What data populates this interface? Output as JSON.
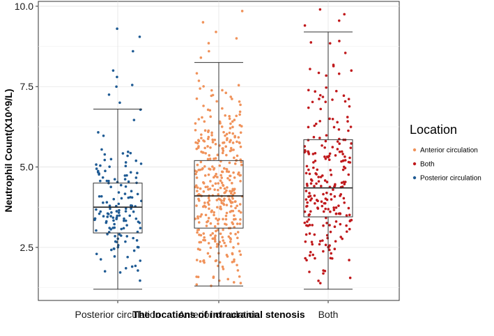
{
  "chart_data": {
    "type": "boxplot-jitter",
    "xlabel": "The locations of intracranial stenosis",
    "ylabel": "Neutrophil Count(X10^9/L)",
    "ylim": [
      0.85,
      10.15
    ],
    "yticks": [
      2.5,
      5.0,
      7.5,
      10.0
    ],
    "ytick_labels": [
      "2.5",
      "5.0",
      "7.5",
      "10.0"
    ],
    "grid": true,
    "categories": [
      "Posterior circulation",
      "Anterior circulation",
      "Both"
    ],
    "boxes": [
      {
        "name": "Posterior circulation",
        "min": 1.2,
        "q1": 2.95,
        "median": 3.75,
        "q3": 4.5,
        "max": 6.8,
        "n": 150,
        "color": "#1f5b94",
        "outliers": [
          7.0,
          7.25,
          7.5,
          7.55,
          7.8,
          8.0,
          8.6,
          9.05,
          9.3
        ]
      },
      {
        "name": "Anterior circulation",
        "min": 1.3,
        "q1": 3.1,
        "median": 4.1,
        "q3": 5.2,
        "max": 8.25,
        "n": 380,
        "color": "#f0925a",
        "outliers": [
          8.4,
          8.6,
          8.85,
          9.0,
          9.2,
          9.5,
          9.85
        ]
      },
      {
        "name": "Both",
        "min": 1.2,
        "q1": 3.45,
        "median": 4.35,
        "q3": 5.85,
        "max": 9.2,
        "n": 240,
        "color": "#c0191c",
        "outliers": [
          9.4,
          9.55,
          9.75,
          9.9
        ]
      }
    ],
    "legend": {
      "title": "Location",
      "position": "right",
      "items": [
        {
          "label": "Anterior circulation",
          "color": "#f0925a"
        },
        {
          "label": "Both",
          "color": "#c0191c"
        },
        {
          "label": "Posterior circulation",
          "color": "#1f5b94"
        }
      ]
    }
  }
}
